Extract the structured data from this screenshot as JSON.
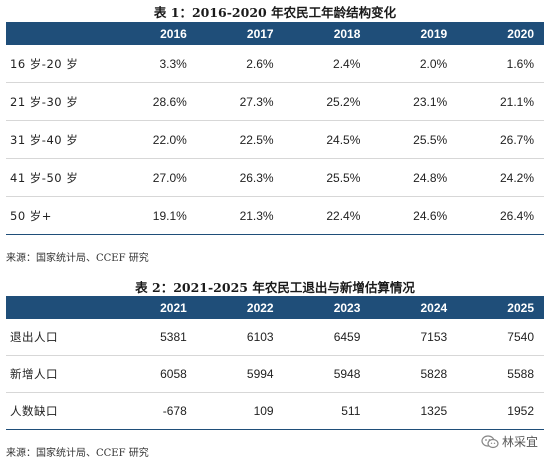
{
  "table1": {
    "title": "表 1：2016-2020 年农民工年龄结构变化",
    "header": [
      "",
      "2016",
      "2017",
      "2018",
      "2019",
      "2020"
    ],
    "rows": [
      {
        "label": "16 岁-20 岁",
        "values": [
          "3.3%",
          "2.6%",
          "2.4%",
          "2.0%",
          "1.6%"
        ]
      },
      {
        "label": "21 岁-30 岁",
        "values": [
          "28.6%",
          "27.3%",
          "25.2%",
          "23.1%",
          "21.1%"
        ]
      },
      {
        "label": "31 岁-40 岁",
        "values": [
          "22.0%",
          "22.5%",
          "24.5%",
          "25.5%",
          "26.7%"
        ]
      },
      {
        "label": "41 岁-50 岁",
        "values": [
          "27.0%",
          "26.3%",
          "25.5%",
          "24.8%",
          "24.2%"
        ]
      },
      {
        "label": "50 岁+",
        "values": [
          "19.1%",
          "21.3%",
          "22.4%",
          "24.6%",
          "26.4%"
        ]
      }
    ],
    "source": "来源：国家统计局、CCEF 研究"
  },
  "table2": {
    "title": "表 2：2021-2025 年农民工退出与新增估算情况",
    "header": [
      "",
      "2021",
      "2022",
      "2023",
      "2024",
      "2025"
    ],
    "rows": [
      {
        "label": "退出人口",
        "values": [
          "5381",
          "6103",
          "6459",
          "7153",
          "7540"
        ]
      },
      {
        "label": "新增人口",
        "values": [
          "6058",
          "5994",
          "5948",
          "5828",
          "5588"
        ]
      },
      {
        "label": "人数缺口",
        "values": [
          "-678",
          "109",
          "511",
          "1325",
          "1952"
        ]
      }
    ],
    "source": "来源：国家统计局、CCEF 研究"
  },
  "watermark": {
    "text": "林采宜",
    "icon": "wechat-icon"
  }
}
